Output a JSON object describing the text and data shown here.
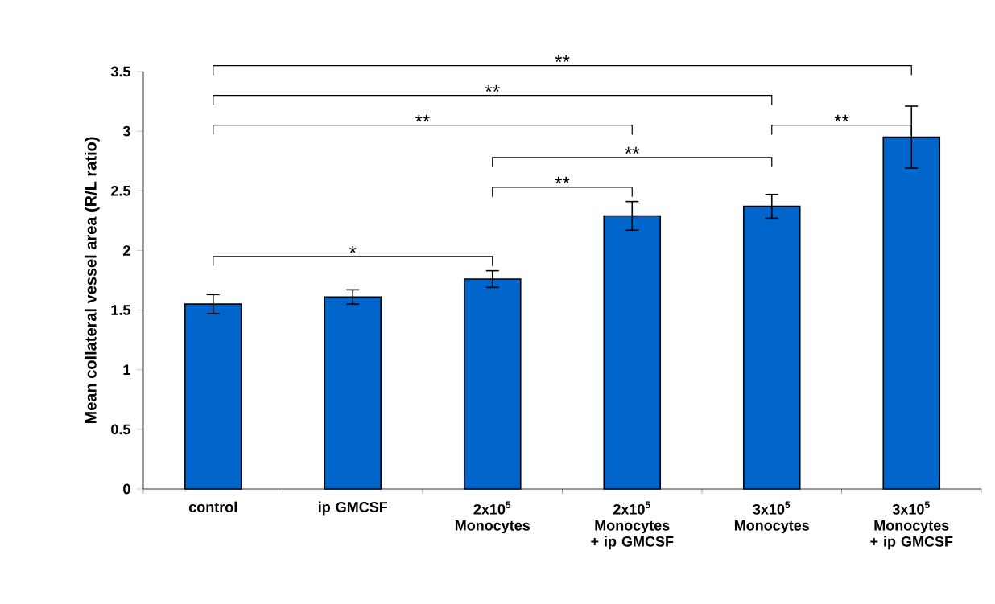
{
  "chart_data": {
    "type": "bar",
    "ylabel": "Mean collateral vessel area (R/L ratio)",
    "categories": [
      "control",
      "ip GMCSF",
      "2x10$^{5}$ Monocytes",
      "2x10$^{5}$ Monocytes + ip GMCSF",
      "3x10$^{5}$ Monocytes",
      "3x10$^{5}$ Monocytes + ip GMCSF"
    ],
    "values": [
      1.55,
      1.61,
      1.76,
      2.29,
      2.37,
      2.95
    ],
    "errors": [
      0.08,
      0.06,
      0.07,
      0.12,
      0.1,
      0.26
    ],
    "color": "#0066cc",
    "ylim": [
      0,
      3.5
    ],
    "yticks": [
      0,
      0.5,
      1,
      1.5,
      2,
      2.5,
      3,
      3.5
    ],
    "grid": false,
    "annotations": [
      "**",
      "**",
      "**",
      "**",
      "**",
      "**",
      "*"
    ]
  }
}
